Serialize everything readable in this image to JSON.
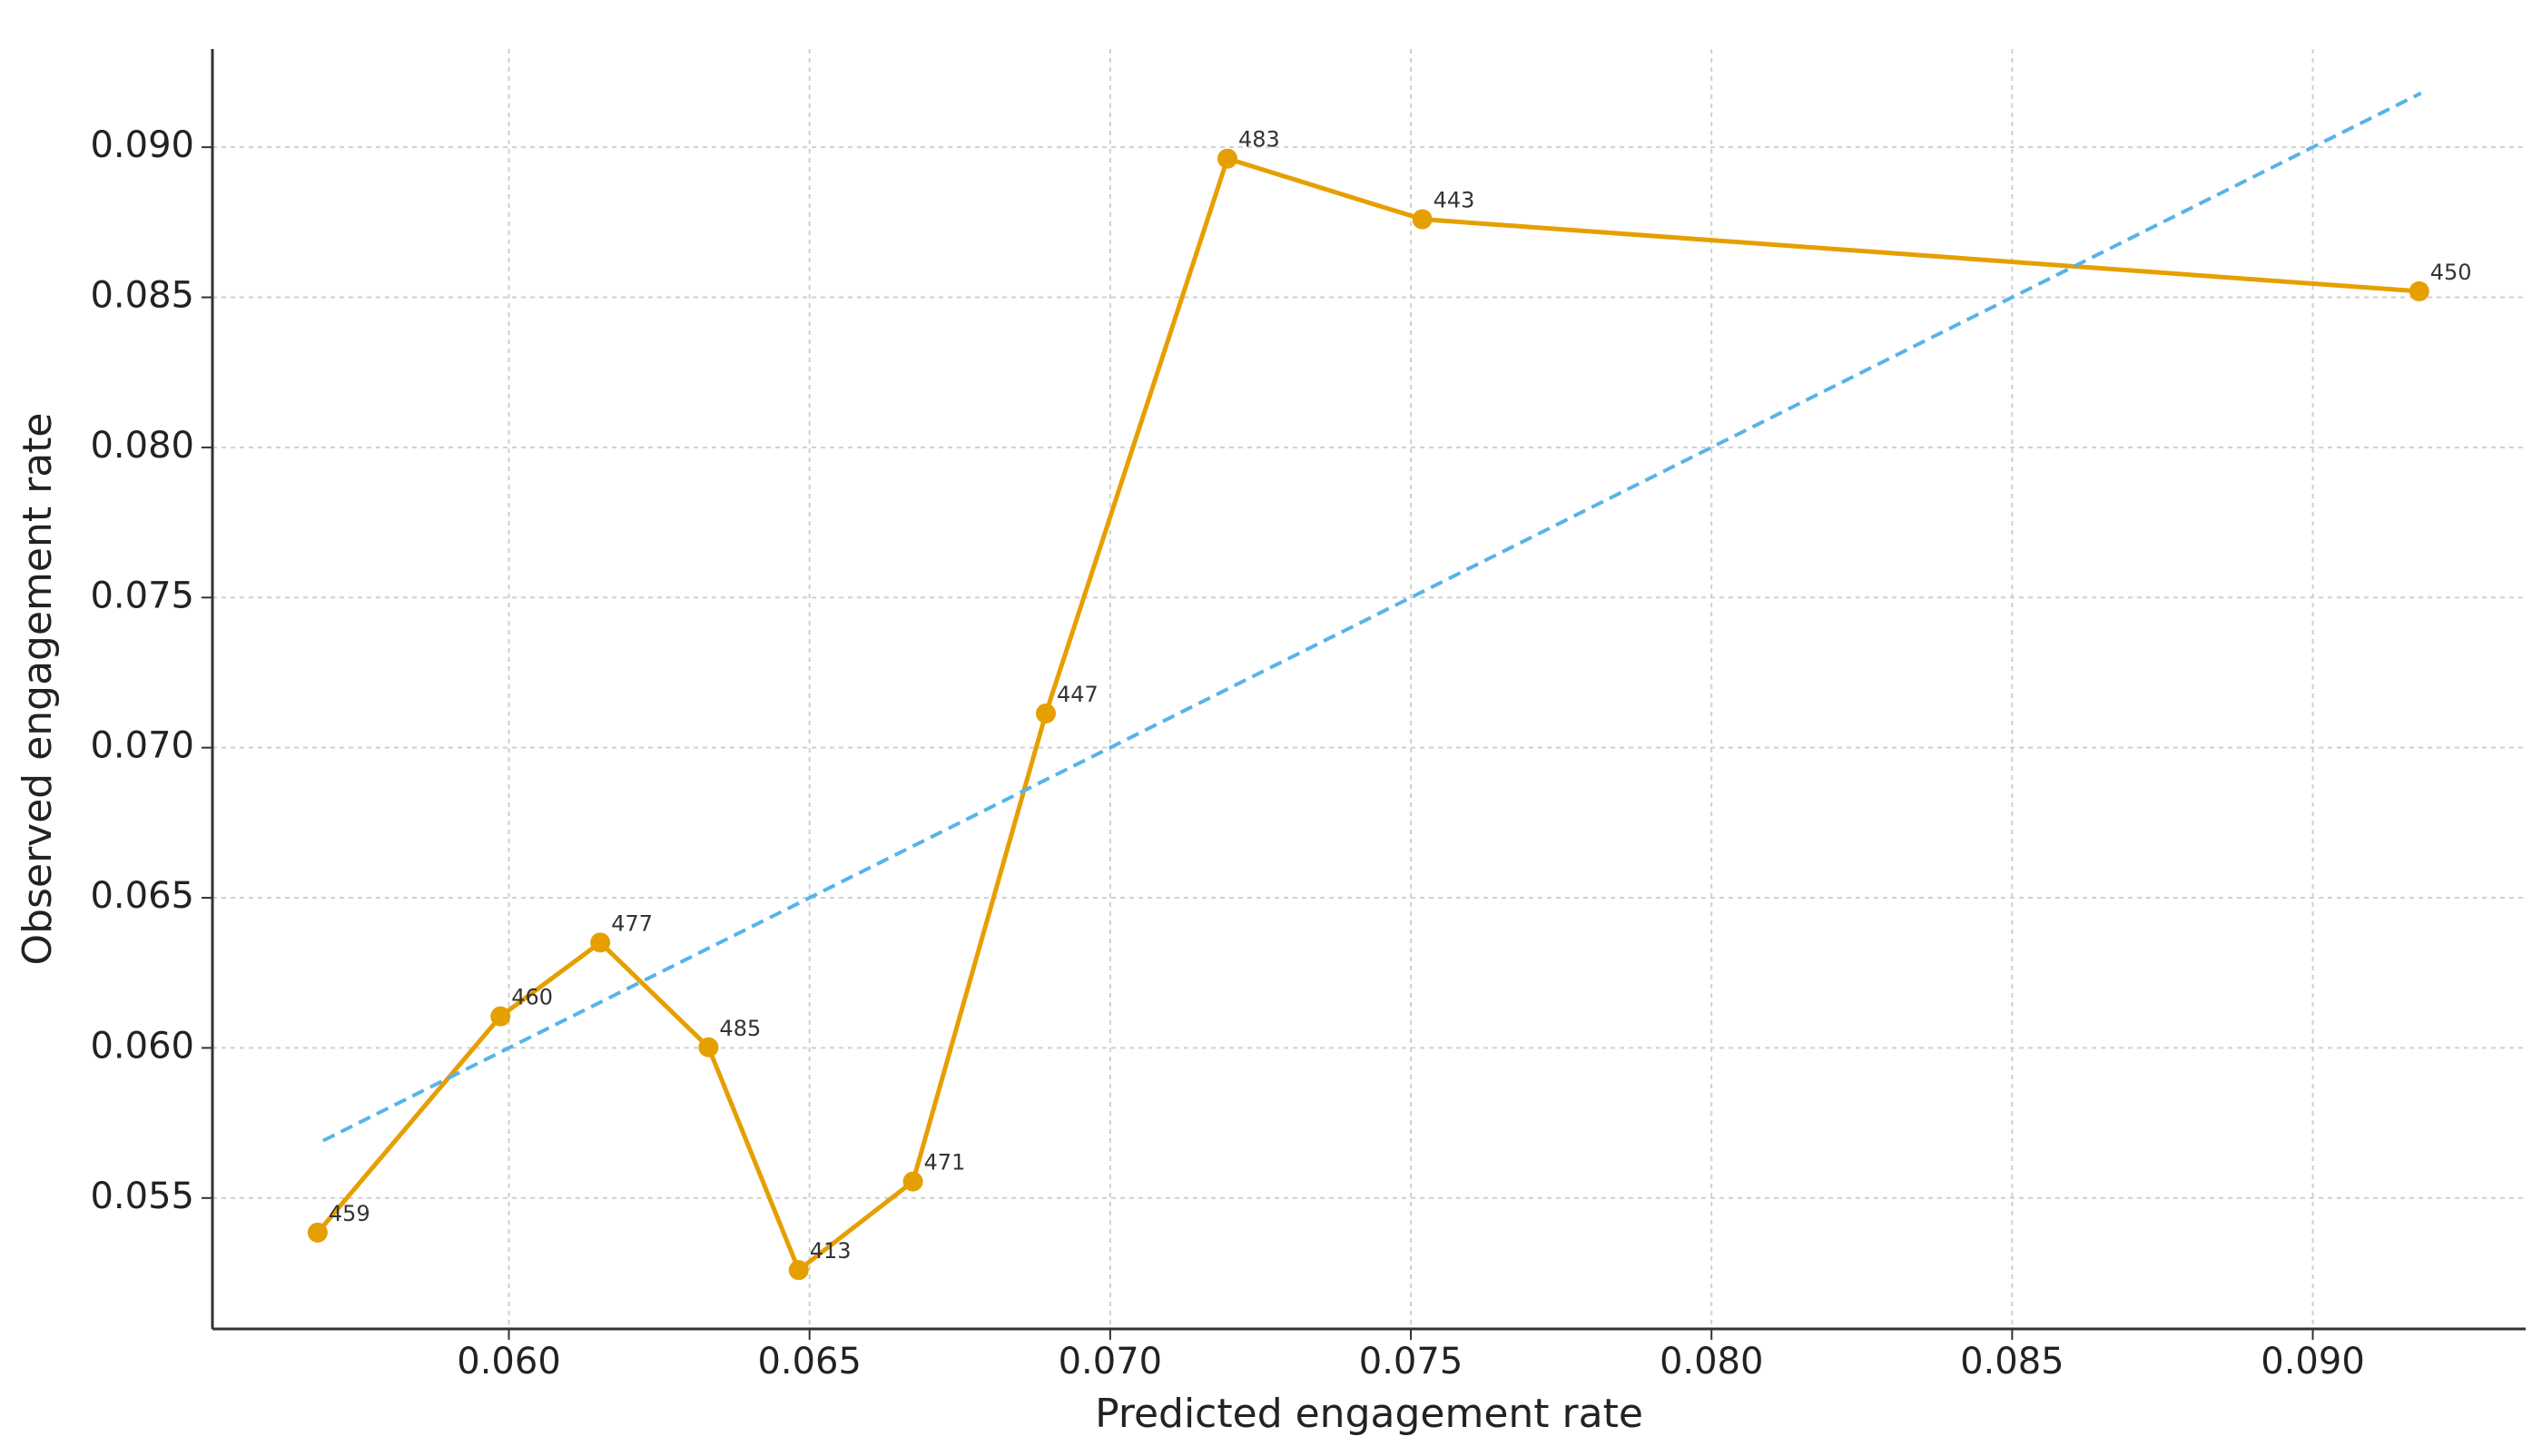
{
  "chart_data": {
    "type": "line",
    "x_label": "Predicted engagement rate",
    "y_label": "Observed engagement rate",
    "xlim": [
      0.05507,
      0.09354
    ],
    "ylim": [
      0.05064,
      0.09327
    ],
    "xticks": [
      {
        "value": 0.06,
        "label": "0.060"
      },
      {
        "value": 0.065,
        "label": "0.065"
      },
      {
        "value": 0.07,
        "label": "0.070"
      },
      {
        "value": 0.075,
        "label": "0.075"
      },
      {
        "value": 0.08,
        "label": "0.080"
      },
      {
        "value": 0.085,
        "label": "0.085"
      },
      {
        "value": 0.09,
        "label": "0.090"
      }
    ],
    "yticks": [
      {
        "value": 0.055,
        "label": "0.055"
      },
      {
        "value": 0.06,
        "label": "0.060"
      },
      {
        "value": 0.065,
        "label": "0.065"
      },
      {
        "value": 0.07,
        "label": "0.070"
      },
      {
        "value": 0.075,
        "label": "0.075"
      },
      {
        "value": 0.08,
        "label": "0.080"
      },
      {
        "value": 0.085,
        "label": "0.085"
      },
      {
        "value": 0.09,
        "label": "0.090"
      }
    ],
    "grid": true,
    "series": [
      {
        "color": "#e69f00",
        "markers": true,
        "x": [
          0.05682,
          0.05986,
          0.06152,
          0.06332,
          0.06482,
          0.06672,
          0.06893,
          0.07195,
          0.07519,
          0.09177
        ],
        "values": [
          0.05385,
          0.06105,
          0.06351,
          0.06002,
          0.0526,
          0.05555,
          0.07114,
          0.08962,
          0.0876,
          0.0852
        ],
        "counts": [
          459,
          460,
          477,
          485,
          413,
          471,
          447,
          483,
          443,
          450
        ]
      },
      {
        "color": "#56b4e9",
        "dashed": true,
        "markers": false,
        "x": [
          0.05691,
          0.0918
        ],
        "values": [
          0.05691,
          0.0918
        ]
      }
    ]
  }
}
